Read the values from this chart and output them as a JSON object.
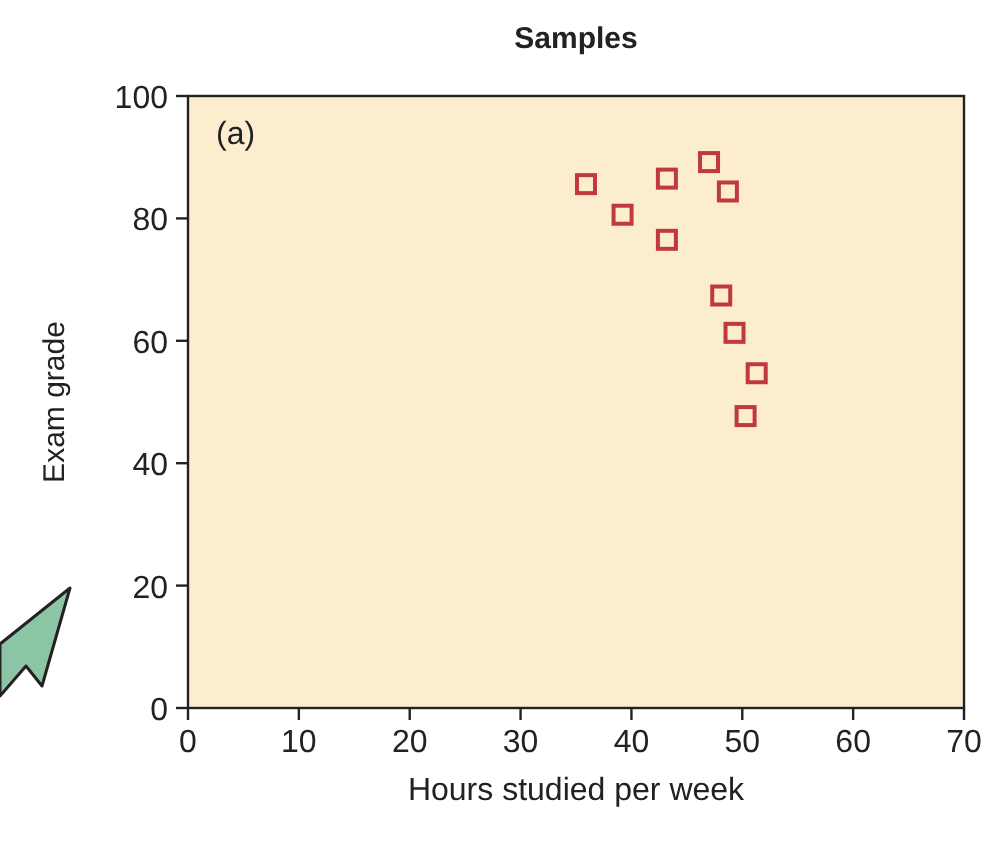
{
  "chart_data": {
    "type": "scatter",
    "title": "Samples",
    "xlabel": "Hours studied per week",
    "ylabel": "Exam grade",
    "annotations": [
      "(a)"
    ],
    "x": [
      35.9,
      39.2,
      43.2,
      47.0,
      48.7,
      43.2,
      48.1,
      49.3,
      51.3,
      50.3
    ],
    "series": [
      {
        "color": "#c0393b",
        "values": [
          85.6,
          80.6,
          86.5,
          89.2,
          84.4,
          76.5,
          67.4,
          61.3,
          54.7,
          47.7
        ]
      }
    ],
    "xlim": [
      0,
      70
    ],
    "xticks": [
      0,
      10,
      20,
      30,
      40,
      50,
      60,
      70
    ],
    "ylim": [
      0,
      100
    ],
    "yticks": [
      0,
      20,
      40,
      60,
      80,
      100
    ],
    "marker": "square",
    "grid": false
  }
}
